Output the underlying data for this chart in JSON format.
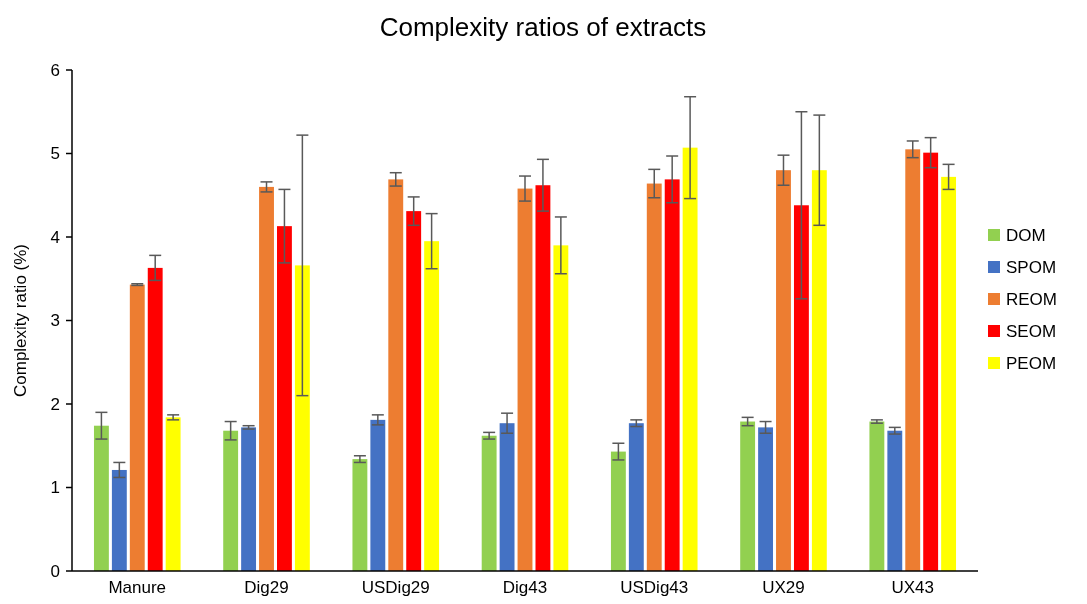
{
  "chart_data": {
    "type": "bar",
    "title": "Complexity ratios of extracts",
    "ylabel": "Complexity ratio (%)",
    "categories": [
      "Manure",
      "Dig29",
      "USDig29",
      "Dig43",
      "USDig43",
      "UX29",
      "UX43"
    ],
    "series": [
      {
        "name": "DOM",
        "color": "#92d050",
        "values": [
          1.74,
          1.68,
          1.34,
          1.62,
          1.43,
          1.79,
          1.79
        ],
        "errors": [
          0.16,
          0.11,
          0.04,
          0.04,
          0.1,
          0.05,
          0.02
        ]
      },
      {
        "name": "SPOM",
        "color": "#4472c4",
        "values": [
          1.21,
          1.72,
          1.81,
          1.77,
          1.77,
          1.72,
          1.68
        ],
        "errors": [
          0.09,
          0.02,
          0.06,
          0.12,
          0.04,
          0.07,
          0.04
        ]
      },
      {
        "name": "REOM",
        "color": "#ed7d31",
        "values": [
          3.43,
          4.6,
          4.69,
          4.58,
          4.64,
          4.8,
          5.05
        ],
        "errors": [
          0.01,
          0.06,
          0.08,
          0.15,
          0.17,
          0.18,
          0.1
        ]
      },
      {
        "name": "SEOM",
        "color": "#ff0000",
        "values": [
          3.63,
          4.13,
          4.31,
          4.62,
          4.69,
          4.38,
          5.01
        ],
        "errors": [
          0.15,
          0.44,
          0.17,
          0.31,
          0.28,
          1.12,
          0.18
        ]
      },
      {
        "name": "PEOM",
        "color": "#ffff00",
        "values": [
          1.84,
          3.66,
          3.95,
          3.9,
          5.07,
          4.8,
          4.72
        ],
        "errors": [
          0.03,
          1.56,
          0.33,
          0.34,
          0.61,
          0.66,
          0.15
        ]
      }
    ],
    "ylim": [
      0,
      6
    ],
    "yticks": [
      0,
      1,
      2,
      3,
      4,
      5,
      6
    ],
    "grid": false,
    "legend": "right"
  }
}
